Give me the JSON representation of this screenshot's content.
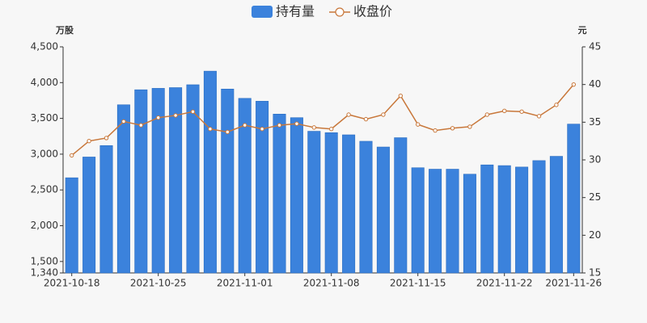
{
  "chart_data": {
    "type": "bar_line",
    "legend": [
      "持有量",
      "收盘价"
    ],
    "y_label": "万股",
    "y2_label": "元",
    "categories": [
      "2021-10-18",
      null,
      null,
      null,
      null,
      "2021-10-25",
      null,
      null,
      null,
      null,
      "2021-11-01",
      null,
      null,
      null,
      null,
      "2021-11-08",
      null,
      null,
      null,
      null,
      "2021-11-15",
      null,
      null,
      null,
      null,
      "2021-11-22",
      null,
      null,
      null,
      "2021-11-26"
    ],
    "series": [
      {
        "name": "持有量",
        "type": "bar",
        "color": "#3b82dc",
        "values": [
          2670,
          2960,
          3120,
          3690,
          3900,
          3920,
          3930,
          3970,
          4160,
          3910,
          3780,
          3740,
          3560,
          3510,
          3320,
          3300,
          3270,
          3180,
          3100,
          3230,
          2810,
          2790,
          2790,
          2720,
          2850,
          2840,
          2820,
          2910,
          2970,
          3420
        ]
      },
      {
        "name": "收盘价",
        "type": "line",
        "axis": "y2",
        "color": "#c8773a",
        "values": [
          30.6,
          32.5,
          32.9,
          35.1,
          34.6,
          35.6,
          35.9,
          36.4,
          34.1,
          33.7,
          34.6,
          34.1,
          34.6,
          34.8,
          34.3,
          34.1,
          36.0,
          35.4,
          36.0,
          38.5,
          34.7,
          33.9,
          34.2,
          34.4,
          36.0,
          36.5,
          36.4,
          35.8,
          37.3,
          40.0
        ]
      }
    ],
    "ylim": [
      1340,
      4500
    ],
    "yticks": [
      {
        "value": 1340,
        "label": "1,340"
      },
      {
        "value": 1500,
        "label": "1,500"
      },
      {
        "value": 2000,
        "label": "2,000"
      },
      {
        "value": 2500,
        "label": "2,500"
      },
      {
        "value": 3000,
        "label": "3,000"
      },
      {
        "value": 3500,
        "label": "3,500"
      },
      {
        "value": 4000,
        "label": "4,000"
      },
      {
        "value": 4500,
        "label": "4,500"
      }
    ],
    "y2lim": [
      15,
      45
    ],
    "y2ticks": [
      15,
      20,
      25,
      30,
      35,
      40,
      45
    ]
  }
}
